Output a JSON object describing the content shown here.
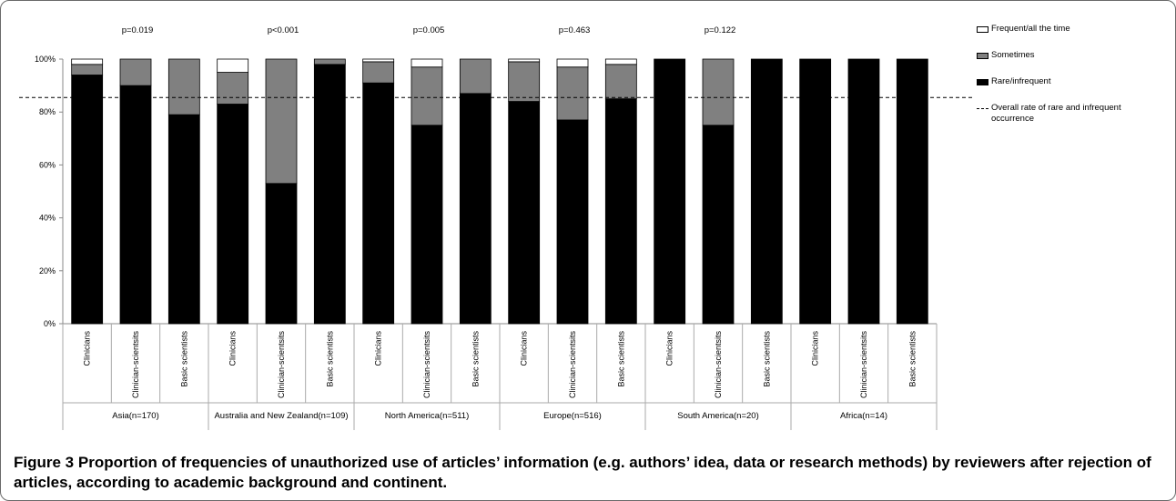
{
  "chart_data": {
    "type": "bar",
    "stacked": true,
    "groups": [
      {
        "label": "Asia(n=170)",
        "p_value": "p=0.019"
      },
      {
        "label": "Australia and New Zealand(n=109)",
        "p_value": "p<0.001"
      },
      {
        "label": "North America(n=511)",
        "p_value": "p=0.005"
      },
      {
        "label": "Europe(n=516)",
        "p_value": "p=0.463"
      },
      {
        "label": "South America(n=20)",
        "p_value": "p=0.122"
      },
      {
        "label": "Africa(n=14)",
        "p_value": ""
      }
    ],
    "categories": [
      "Clinicians",
      "Clinician-scientsits",
      "Basic scientists",
      "Clinicians",
      "Clinician-scientsits",
      "Basic scientists",
      "Clinicians",
      "Clinician-scientsits",
      "Basic scientists",
      "Clinicians",
      "Clinician-scientsits",
      "Basic scientists",
      "Clinicians",
      "Clinician-scientsits",
      "Basic scientists",
      "Clinicians",
      "Clinician-scientsits",
      "Basic scientists"
    ],
    "series": [
      {
        "name": "Rare/infrequent",
        "color": "#000000",
        "values": [
          94,
          90,
          79,
          83,
          53,
          98,
          91,
          75,
          87,
          84,
          77,
          85,
          100,
          75,
          100,
          100,
          100,
          100
        ]
      },
      {
        "name": "Sometimes",
        "color": "#808080",
        "values": [
          4,
          10,
          21,
          12,
          47,
          2,
          8,
          22,
          13,
          15,
          20,
          13,
          0,
          25,
          0,
          0,
          0,
          0
        ]
      },
      {
        "name": "Frequent/all the time",
        "color": "#ffffff",
        "values": [
          2,
          0,
          0,
          5,
          0,
          0,
          1,
          3,
          0,
          1,
          3,
          2,
          0,
          0,
          0,
          0,
          0,
          0
        ]
      }
    ],
    "reference_line": {
      "name": "Overall rate of rare and infrequent occurrence",
      "value": 85.5,
      "style": "dashed"
    },
    "yticks": [
      "0%",
      "20%",
      "40%",
      "60%",
      "80%",
      "100%"
    ],
    "ylim": [
      0,
      100
    ],
    "legend": [
      {
        "label": "Frequent/all the time",
        "color": "#ffffff",
        "kind": "box"
      },
      {
        "label": "Sometimes",
        "color": "#808080",
        "kind": "box"
      },
      {
        "label": "Rare/infrequent",
        "color": "#000000",
        "kind": "box"
      },
      {
        "label": "Overall rate of rare and infrequent occurrence",
        "kind": "dashed-line"
      }
    ],
    "legend_position": "right",
    "grid": false
  },
  "caption": {
    "label": "Figure 3",
    "text": "Proportion of frequencies of unauthorized use of articles’ information (e.g. authors’ idea, data or research methods) by reviewers after rejection of articles, according to academic background and continent."
  }
}
